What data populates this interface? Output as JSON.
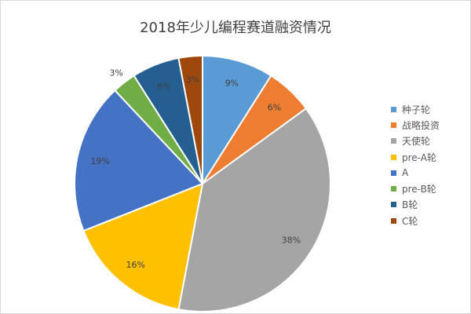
{
  "chart_data": {
    "type": "pie",
    "title": "2018年少儿编程赛道融资情况",
    "categories": [
      "种子轮",
      "战略投资",
      "天使轮",
      "pre-A轮",
      "A",
      "pre-B轮",
      "B轮",
      "C轮"
    ],
    "values": [
      9,
      6,
      38,
      16,
      19,
      3,
      6,
      3
    ],
    "labels": [
      "9%",
      "6%",
      "38%",
      "16%",
      "19%",
      "3%",
      "6%",
      "3%"
    ],
    "colors": [
      "#5b9bd5",
      "#ed7d31",
      "#a5a5a5",
      "#ffc000",
      "#4472c4",
      "#70ad47",
      "#255e91",
      "#9e480e"
    ],
    "start_angle": "12 o'clock",
    "direction": "clockwise",
    "legend_position": "right"
  }
}
